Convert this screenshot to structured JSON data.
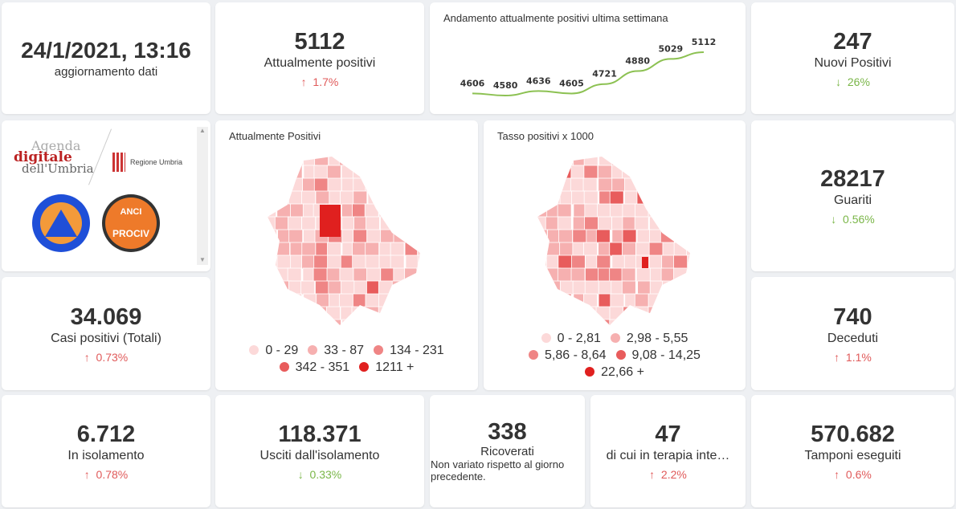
{
  "update": {
    "datetime": "24/1/2021, 13:16",
    "label": "aggiornamento dati"
  },
  "kpis": {
    "attualmente_positivi": {
      "value": "5112",
      "label": "Attualmente positivi",
      "change": "1.7%",
      "dir": "up"
    },
    "nuovi_positivi": {
      "value": "247",
      "label": "Nuovi Positivi",
      "change": "26%",
      "dir": "down"
    },
    "guariti": {
      "value": "28217",
      "label": "Guariti",
      "change": "0.56%",
      "dir": "down"
    },
    "casi_totali": {
      "value": "34.069",
      "label": "Casi positivi (Totali)",
      "change": "0.73%",
      "dir": "up"
    },
    "deceduti": {
      "value": "740",
      "label": "Deceduti",
      "change": "1.1%",
      "dir": "up"
    },
    "isolamento": {
      "value": "6.712",
      "label": "In isolamento",
      "change": "0.78%",
      "dir": "up"
    },
    "usciti": {
      "value": "118.371",
      "label": "Usciti dall'isolamento",
      "change": "0.33%",
      "dir": "down"
    },
    "ricoverati": {
      "value": "338",
      "label": "Ricoverati",
      "note": "Non variato rispetto al giorno precedente."
    },
    "terapia": {
      "value": "47",
      "label": "di cui in terapia inte…",
      "change": "2.2%",
      "dir": "up"
    },
    "tamponi": {
      "value": "570.682",
      "label": "Tamponi eseguiti",
      "change": "0.6%",
      "dir": "up"
    }
  },
  "arrows": {
    "up": "↑",
    "down": "↓"
  },
  "logos": {
    "agenda": "Agenda digitale dell'Umbria",
    "regione": "Regione Umbria",
    "protezione": "Protezione Civile Regione Umbria",
    "anci": "ANCI UMBRIA PROCIV"
  },
  "chart_data": {
    "type": "line",
    "title": "Andamento attualmente positivi ultima settimana",
    "values": [
      4606,
      4580,
      4636,
      4605,
      4721,
      4880,
      5029,
      5112
    ],
    "color": "#8cc152"
  },
  "map1": {
    "title": "Attualmente Positivi",
    "legend": [
      {
        "label": "0 - 29",
        "color": "#fcd9d9"
      },
      {
        "label": "33 - 87",
        "color": "#f6b0b0"
      },
      {
        "label": "134 - 231",
        "color": "#ef8585"
      },
      {
        "label": "342 - 351",
        "color": "#e85c5c"
      },
      {
        "label": "1211 +",
        "color": "#e0201f"
      }
    ]
  },
  "map2": {
    "title": "Tasso positivi x 1000",
    "legend": [
      {
        "label": "0 - 2,81",
        "color": "#fcd9d9"
      },
      {
        "label": "2,98 - 5,55",
        "color": "#f6b0b0"
      },
      {
        "label": "5,86 - 8,64",
        "color": "#ef8585"
      },
      {
        "label": "9,08 - 14,25",
        "color": "#e85c5c"
      },
      {
        "label": "22,66 +",
        "color": "#e0201f"
      }
    ]
  }
}
